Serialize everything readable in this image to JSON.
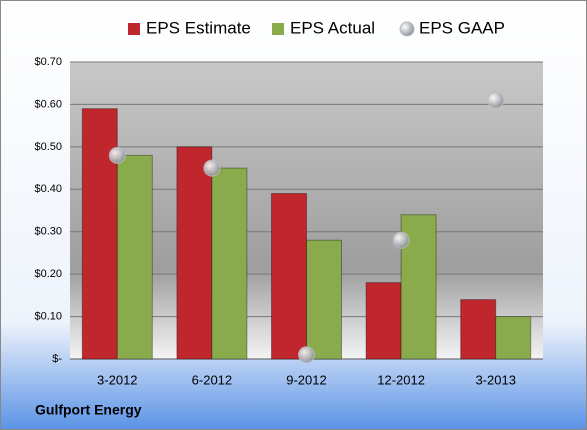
{
  "chart_data": {
    "type": "bar",
    "title": "Gulfport Energy",
    "categories": [
      "3-2012",
      "6-2012",
      "9-2012",
      "12-2012",
      "3-2013"
    ],
    "series": [
      {
        "name": "EPS Estimate",
        "type": "bar",
        "color": "#c0272d",
        "values": [
          0.59,
          0.5,
          0.39,
          0.18,
          0.14
        ]
      },
      {
        "name": "EPS Actual",
        "type": "bar",
        "color": "#8aab4b",
        "values": [
          0.48,
          0.45,
          0.28,
          0.34,
          0.1
        ]
      },
      {
        "name": "EPS GAAP",
        "type": "scatter",
        "color": "#b8bcc4",
        "values": [
          0.48,
          0.45,
          0.01,
          0.28,
          0.61
        ]
      }
    ],
    "ylim": [
      0,
      0.7
    ],
    "yticks": [
      {
        "value": 0,
        "label": "$-"
      },
      {
        "value": 0.1,
        "label": "$0.10"
      },
      {
        "value": 0.2,
        "label": "$0.20"
      },
      {
        "value": 0.3,
        "label": "$0.30"
      },
      {
        "value": 0.4,
        "label": "$0.40"
      },
      {
        "value": 0.5,
        "label": "$0.50"
      },
      {
        "value": 0.6,
        "label": "$0.60"
      },
      {
        "value": 0.7,
        "label": "$0.70"
      }
    ],
    "grid": true
  }
}
